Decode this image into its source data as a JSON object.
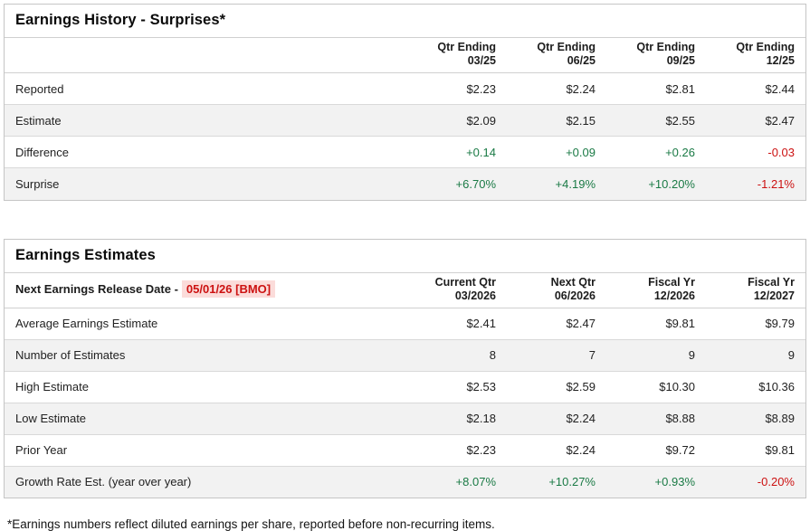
{
  "colors": {
    "positive": "#1a7a45",
    "negative": "#cc1111",
    "highlight_bg": "#fbdcda",
    "stripe": "#f2f2f2"
  },
  "earnings_history": {
    "title": "Earnings History - Surprises*",
    "columns": [
      {
        "line1": "Qtr Ending",
        "line2": "03/25"
      },
      {
        "line1": "Qtr Ending",
        "line2": "06/25"
      },
      {
        "line1": "Qtr Ending",
        "line2": "09/25"
      },
      {
        "line1": "Qtr Ending",
        "line2": "12/25"
      }
    ],
    "rows": [
      {
        "label": "Reported",
        "values": [
          "$2.23",
          "$2.24",
          "$2.81",
          "$2.44"
        ]
      },
      {
        "label": "Estimate",
        "values": [
          "$2.09",
          "$2.15",
          "$2.55",
          "$2.47"
        ]
      },
      {
        "label": "Difference",
        "values": [
          "+0.14",
          "+0.09",
          "+0.26",
          "-0.03"
        ],
        "value_colors": [
          "positive",
          "positive",
          "positive",
          "negative"
        ]
      },
      {
        "label": "Surprise",
        "values": [
          "+6.70%",
          "+4.19%",
          "+10.20%",
          "-1.21%"
        ],
        "value_colors": [
          "positive",
          "positive",
          "positive",
          "negative"
        ]
      }
    ]
  },
  "earnings_estimates": {
    "title": "Earnings Estimates",
    "release_label": "Next Earnings Release Date -",
    "release_date": "05/01/26 [BMO]",
    "columns": [
      {
        "line1": "Current Qtr",
        "line2": "03/2026"
      },
      {
        "line1": "Next Qtr",
        "line2": "06/2026"
      },
      {
        "line1": "Fiscal Yr",
        "line2": "12/2026"
      },
      {
        "line1": "Fiscal Yr",
        "line2": "12/2027"
      }
    ],
    "rows": [
      {
        "label": "Average Earnings Estimate",
        "values": [
          "$2.41",
          "$2.47",
          "$9.81",
          "$9.79"
        ]
      },
      {
        "label": "Number of Estimates",
        "values": [
          "8",
          "7",
          "9",
          "9"
        ]
      },
      {
        "label": "High Estimate",
        "values": [
          "$2.53",
          "$2.59",
          "$10.30",
          "$10.36"
        ]
      },
      {
        "label": "Low Estimate",
        "values": [
          "$2.18",
          "$2.24",
          "$8.88",
          "$8.89"
        ]
      },
      {
        "label": "Prior Year",
        "values": [
          "$2.23",
          "$2.24",
          "$9.72",
          "$9.81"
        ]
      },
      {
        "label": "Growth Rate Est. (year over year)",
        "values": [
          "+8.07%",
          "+10.27%",
          "+0.93%",
          "-0.20%"
        ],
        "value_colors": [
          "positive",
          "positive",
          "positive",
          "negative"
        ]
      }
    ]
  },
  "footnote": "*Earnings numbers reflect diluted earnings per share, reported before non-recurring items."
}
